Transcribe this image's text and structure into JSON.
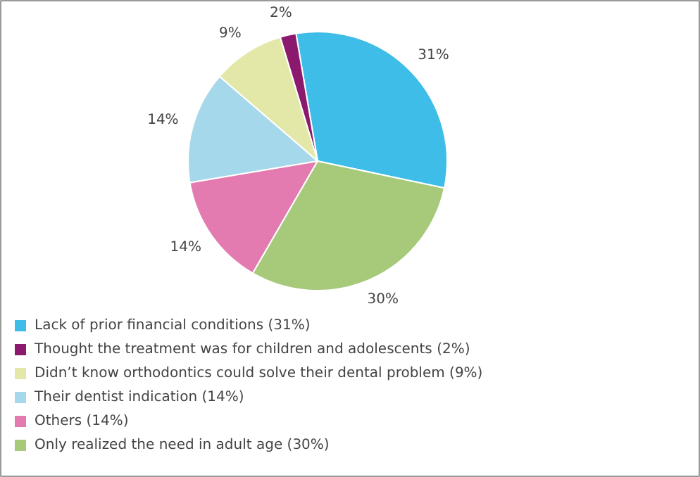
{
  "chart_data": {
    "type": "pie",
    "categories": [
      "Lack of prior financial conditions (31%)",
      "Thought the treatment was for children and adolescents (2%)",
      "Didn’t know orthodontics could solve their dental problem (9%)",
      "Their dentist indication (14%)",
      "Others (14%)",
      "Only realized the need in adult age (30%)"
    ],
    "values": [
      31,
      2,
      9,
      14,
      14,
      30
    ],
    "colors": [
      "#3dbde8",
      "#8b1a6f",
      "#e3e8a8",
      "#a6d8ec",
      "#e37bb0",
      "#a6c97a"
    ],
    "value_labels": [
      "31%",
      "2%",
      "9%",
      "14%",
      "14%",
      "30%"
    ],
    "legend": "bottom left"
  }
}
